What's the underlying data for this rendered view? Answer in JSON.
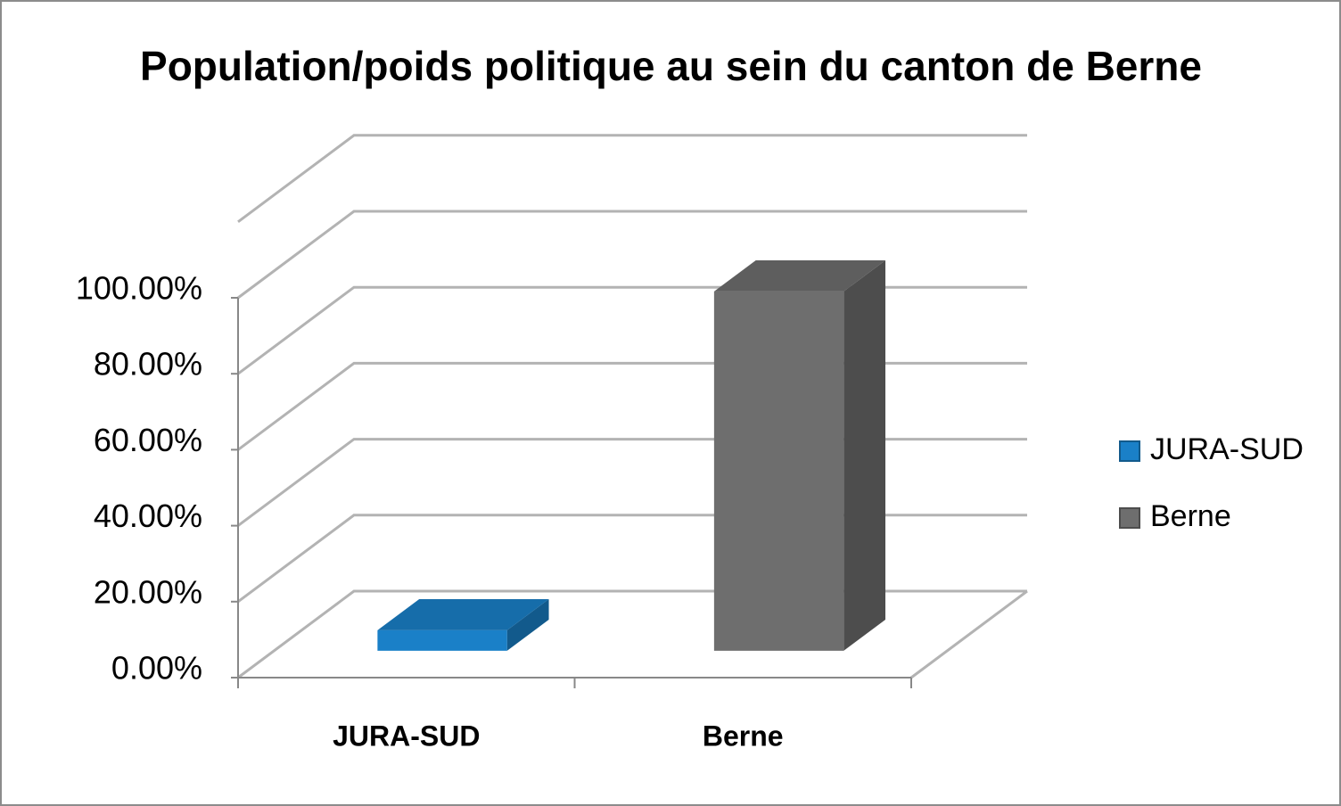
{
  "chart_data": {
    "type": "bar3d",
    "title": "Population/poids politique au sein du canton de Berne",
    "categories": [
      "JURA-SUD",
      "Berne"
    ],
    "series": [
      {
        "name": "JURA-SUD",
        "color": "#1a80c8"
      },
      {
        "name": "Berne",
        "color": "#6e6e6e"
      }
    ],
    "values": [
      5.4,
      94.6
    ],
    "ylim": [
      0,
      120
    ],
    "yticks": [
      {
        "value": 0,
        "label": "0.00%"
      },
      {
        "value": 20,
        "label": "20.00%"
      },
      {
        "value": 40,
        "label": "40.00%"
      },
      {
        "value": 60,
        "label": "60.00%"
      },
      {
        "value": 80,
        "label": "80.00%"
      },
      {
        "value": 100,
        "label": "100.00%"
      }
    ],
    "grid": true,
    "legend": "right"
  }
}
